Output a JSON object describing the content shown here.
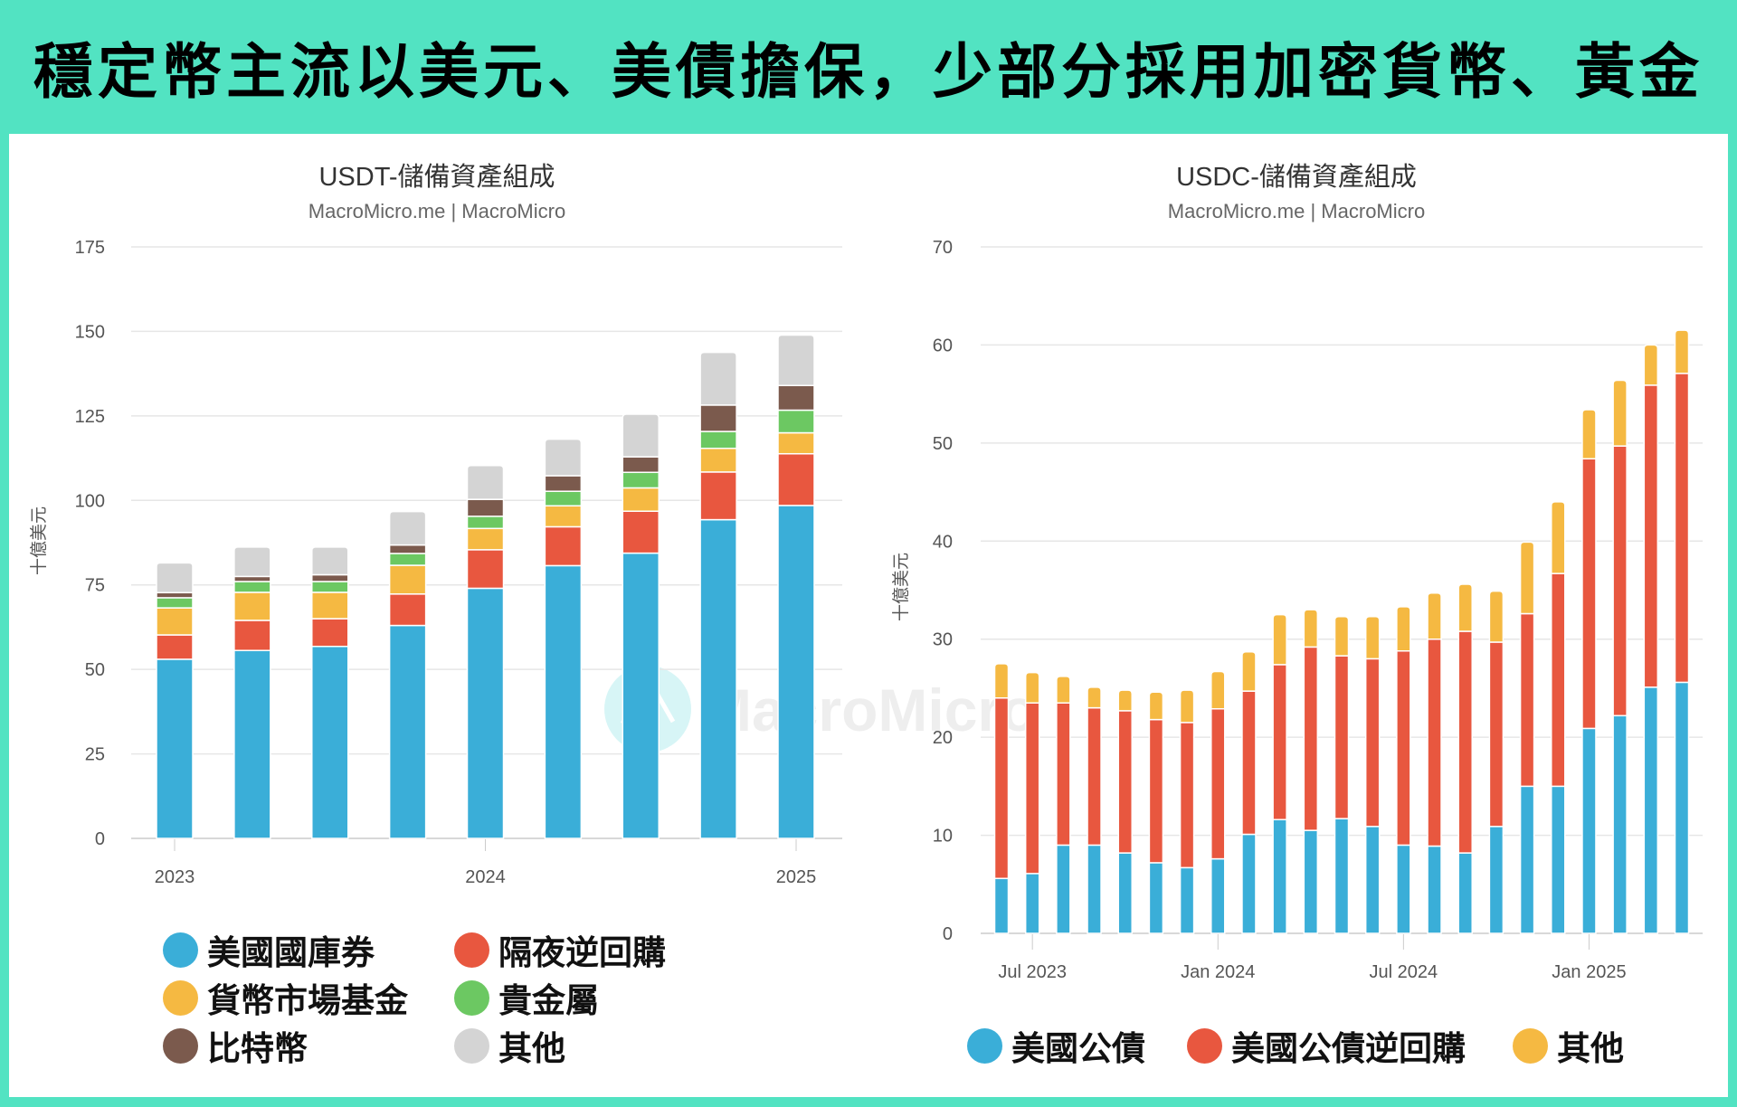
{
  "headline": "穩定幣主流以美元、美債擔保，少部分採用加密貨幣、黃金",
  "colors": {
    "background": "#52e3c2",
    "panel": "#ffffff",
    "grid": "#e6e6e6"
  },
  "watermark": "MacroMicro",
  "chart_data": [
    {
      "type": "bar",
      "stacked": true,
      "title": "USDT-儲備資產組成",
      "subtitle": "MacroMicro.me | MacroMicro",
      "ylabel": "十億美元",
      "xlabel": "",
      "ylim": [
        0,
        175
      ],
      "yticks": [
        0,
        25,
        50,
        75,
        100,
        125,
        150,
        175
      ],
      "grid": true,
      "legend_position": "bottom",
      "x": [
        "2023-01",
        "2023-04",
        "2023-07",
        "2023-10",
        "2024-01",
        "2024-04",
        "2024-07",
        "2024-10",
        "2025-01"
      ],
      "xticks": [
        {
          "x": "2023-01",
          "label": "2023"
        },
        {
          "x": "2024-01",
          "label": "2024"
        },
        {
          "x": "2025-01",
          "label": "2025"
        }
      ],
      "series": [
        {
          "name": "美國國庫券",
          "color": "#3aaed8",
          "values": [
            53.0,
            55.6,
            56.8,
            63.0,
            74.0,
            80.7,
            84.4,
            94.3,
            98.5
          ]
        },
        {
          "name": "隔夜逆回購",
          "color": "#e8573f",
          "values": [
            7.2,
            8.9,
            8.2,
            9.3,
            11.4,
            11.5,
            12.4,
            14.1,
            15.3
          ]
        },
        {
          "name": "貨幣市場基金",
          "color": "#f5b942",
          "values": [
            8.0,
            8.3,
            7.8,
            8.5,
            6.3,
            6.2,
            6.9,
            7.0,
            6.2
          ]
        },
        {
          "name": "貴金屬",
          "color": "#6cc862",
          "values": [
            3.0,
            3.2,
            3.2,
            3.5,
            3.6,
            4.3,
            4.6,
            5.0,
            6.7
          ]
        },
        {
          "name": "比特幣",
          "color": "#7b5a4d",
          "values": [
            1.5,
            1.5,
            2.0,
            2.5,
            5.0,
            4.6,
            4.6,
            7.8,
            7.3
          ]
        },
        {
          "name": "其他",
          "color": "#d4d4d4",
          "values": [
            8.8,
            8.7,
            8.2,
            9.9,
            10.0,
            10.8,
            12.6,
            15.6,
            14.9
          ]
        }
      ]
    },
    {
      "type": "bar",
      "stacked": true,
      "title": "USDC-儲備資產組成",
      "subtitle": "MacroMicro.me | MacroMicro",
      "ylabel": "十億美元",
      "xlabel": "",
      "ylim": [
        0,
        70
      ],
      "yticks": [
        0,
        10,
        20,
        30,
        40,
        50,
        60,
        70
      ],
      "grid": true,
      "legend_position": "bottom",
      "x": [
        "2023-06",
        "2023-07",
        "2023-08",
        "2023-09",
        "2023-10",
        "2023-11",
        "2023-12",
        "2024-01",
        "2024-02",
        "2024-03",
        "2024-04",
        "2024-05",
        "2024-06",
        "2024-07",
        "2024-08",
        "2024-09",
        "2024-10",
        "2024-11",
        "2024-12",
        "2025-01",
        "2025-02",
        "2025-03",
        "2025-04"
      ],
      "xticks": [
        {
          "x": "2023-07",
          "label": "Jul 2023"
        },
        {
          "x": "2024-01",
          "label": "Jan 2024"
        },
        {
          "x": "2024-07",
          "label": "Jul 2024"
        },
        {
          "x": "2025-01",
          "label": "Jan 2025"
        }
      ],
      "series": [
        {
          "name": "美國公債",
          "color": "#3aaed8",
          "values": [
            5.6,
            6.1,
            9.0,
            9.0,
            8.2,
            7.2,
            6.7,
            7.6,
            10.1,
            11.6,
            10.5,
            11.7,
            10.9,
            9.0,
            8.9,
            8.2,
            10.9,
            15.0,
            15.0,
            20.9,
            22.2,
            25.1,
            25.6
          ]
        },
        {
          "name": "美國公債逆回購",
          "color": "#e8573f",
          "values": [
            18.4,
            17.4,
            14.5,
            14.0,
            14.5,
            14.6,
            14.8,
            15.3,
            14.6,
            15.8,
            18.7,
            16.6,
            17.1,
            19.8,
            21.1,
            22.6,
            18.8,
            17.6,
            21.7,
            27.5,
            27.5,
            30.8,
            31.5
          ]
        },
        {
          "name": "其他",
          "color": "#f5b942",
          "values": [
            3.5,
            3.1,
            2.7,
            2.1,
            2.1,
            2.8,
            3.3,
            3.8,
            4.0,
            5.1,
            3.8,
            4.0,
            4.3,
            4.5,
            4.7,
            4.8,
            5.2,
            7.3,
            7.3,
            5.0,
            6.7,
            4.1,
            4.4
          ]
        }
      ]
    }
  ]
}
